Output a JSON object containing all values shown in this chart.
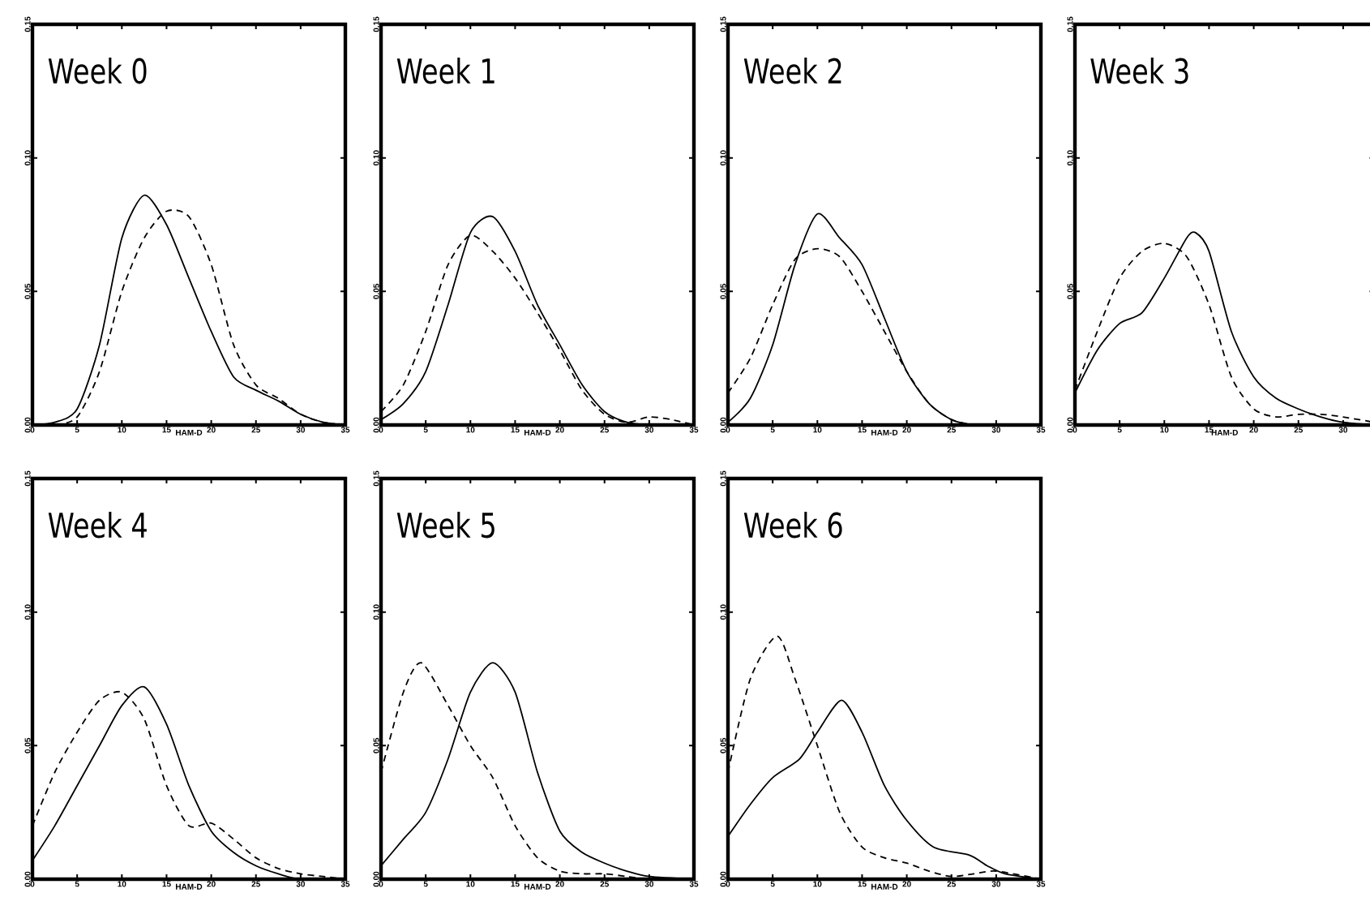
{
  "chart_data": [
    {
      "type": "line",
      "title": "Week 0",
      "xlabel": "HAM-D",
      "xlim": [
        0,
        35
      ],
      "xticks": [
        0,
        5,
        10,
        15,
        20,
        25,
        30,
        35
      ],
      "ylim": [
        0,
        0.15
      ],
      "yticks": [
        {
          "value": 0,
          "label": "0.00"
        },
        {
          "value": 0.05,
          "label": "0.05"
        },
        {
          "value": 0.1,
          "label": "0.10"
        },
        {
          "value": 0.15,
          "label": "0.15"
        }
      ],
      "marker": "none",
      "grid": false,
      "series": [
        {
          "color": "#000000",
          "line_style": "solid",
          "x": [
            0,
            2.5,
            5,
            7.5,
            10,
            12.5,
            15,
            17.5,
            20,
            22.5,
            25,
            27.5,
            30,
            32.5,
            35
          ],
          "values": [
            0,
            0.001,
            0.006,
            0.03,
            0.07,
            0.086,
            0.075,
            0.055,
            0.035,
            0.018,
            0.013,
            0.009,
            0.004,
            0.001,
            0
          ]
        },
        {
          "color": "#000000",
          "line_style": "dashed",
          "x": [
            0,
            2.5,
            5,
            7.5,
            10,
            12.5,
            15,
            17.5,
            20,
            22.5,
            25,
            27.5,
            30,
            32.5,
            35
          ],
          "values": [
            0,
            0,
            0.003,
            0.02,
            0.05,
            0.07,
            0.08,
            0.078,
            0.06,
            0.03,
            0.015,
            0.01,
            0.004,
            0.001,
            0
          ]
        }
      ]
    },
    {
      "type": "line",
      "title": "Week 1",
      "xlabel": "HAM-D",
      "xlim": [
        0,
        35
      ],
      "xticks": [
        0,
        5,
        10,
        15,
        20,
        25,
        30,
        35
      ],
      "ylim": [
        0,
        0.15
      ],
      "yticks": [
        {
          "value": 0,
          "label": "0.00"
        },
        {
          "value": 0.05,
          "label": "0.05"
        },
        {
          "value": 0.1,
          "label": "0.10"
        },
        {
          "value": 0.15,
          "label": "0.15"
        }
      ],
      "marker": "none",
      "grid": false,
      "series": [
        {
          "color": "#000000",
          "line_style": "solid",
          "x": [
            0,
            2.5,
            5,
            7.5,
            10,
            12.5,
            15,
            17.5,
            20,
            22.5,
            25,
            27.5,
            30,
            32.5,
            35
          ],
          "values": [
            0.002,
            0.008,
            0.02,
            0.045,
            0.072,
            0.078,
            0.065,
            0.045,
            0.03,
            0.015,
            0.005,
            0.001,
            0,
            0,
            0
          ]
        },
        {
          "color": "#000000",
          "line_style": "dashed",
          "x": [
            0,
            2.5,
            5,
            7.5,
            10,
            12.5,
            15,
            17.5,
            20,
            22.5,
            25,
            27.5,
            30,
            32.5,
            35
          ],
          "values": [
            0.005,
            0.015,
            0.035,
            0.06,
            0.071,
            0.065,
            0.055,
            0.042,
            0.028,
            0.013,
            0.004,
            0.001,
            0.003,
            0.002,
            0
          ]
        }
      ]
    },
    {
      "type": "line",
      "title": "Week 2",
      "xlabel": "HAM-D",
      "xlim": [
        0,
        35
      ],
      "xticks": [
        0,
        5,
        10,
        15,
        20,
        25,
        30,
        35
      ],
      "ylim": [
        0,
        0.15
      ],
      "yticks": [
        {
          "value": 0,
          "label": "0.00"
        },
        {
          "value": 0.05,
          "label": "0.05"
        },
        {
          "value": 0.1,
          "label": "0.10"
        },
        {
          "value": 0.15,
          "label": "0.15"
        }
      ],
      "marker": "none",
      "grid": false,
      "series": [
        {
          "color": "#000000",
          "line_style": "solid",
          "x": [
            0,
            2.5,
            5,
            7.5,
            10,
            12.5,
            15,
            17.5,
            20,
            22.5,
            25,
            27.5,
            30,
            35
          ],
          "values": [
            0.001,
            0.01,
            0.03,
            0.06,
            0.079,
            0.07,
            0.06,
            0.04,
            0.02,
            0.008,
            0.002,
            0,
            0,
            0
          ]
        },
        {
          "color": "#000000",
          "line_style": "dashed",
          "x": [
            0,
            2.5,
            5,
            7.5,
            10,
            12.5,
            15,
            17.5,
            20,
            22.5,
            25,
            27.5,
            30,
            35
          ],
          "values": [
            0.012,
            0.025,
            0.045,
            0.062,
            0.066,
            0.063,
            0.05,
            0.035,
            0.02,
            0.008,
            0.002,
            0,
            0,
            0
          ]
        }
      ]
    },
    {
      "type": "line",
      "title": "Week 3",
      "xlabel": "HAM-D",
      "xlim": [
        0,
        33.5
      ],
      "xticks": [
        0,
        5,
        10,
        15,
        20,
        25,
        30
      ],
      "ylim": [
        0,
        0.15
      ],
      "yticks": [
        {
          "value": 0,
          "label": "0.00"
        },
        {
          "value": 0.05,
          "label": "0.05"
        },
        {
          "value": 0.1,
          "label": "0.10"
        },
        {
          "value": 0.15,
          "label": "0.15"
        }
      ],
      "marker": "none",
      "grid": false,
      "series": [
        {
          "color": "#000000",
          "line_style": "solid",
          "x": [
            0,
            2.5,
            5,
            7.5,
            10,
            12.5,
            13.5,
            15,
            17.5,
            20,
            22.5,
            25,
            27.5,
            30,
            33.5
          ],
          "values": [
            0.012,
            0.028,
            0.038,
            0.042,
            0.055,
            0.07,
            0.072,
            0.065,
            0.035,
            0.018,
            0.01,
            0.006,
            0.003,
            0.001,
            0
          ]
        },
        {
          "color": "#000000",
          "line_style": "dashed",
          "x": [
            0,
            2.5,
            5,
            7.5,
            10,
            12.5,
            15,
            17.5,
            20,
            22.5,
            25,
            27.5,
            30,
            33.5
          ],
          "values": [
            0.013,
            0.035,
            0.055,
            0.065,
            0.068,
            0.063,
            0.045,
            0.018,
            0.006,
            0.003,
            0.004,
            0.004,
            0.003,
            0.001
          ]
        }
      ]
    },
    {
      "type": "line",
      "title": "Week 4",
      "xlabel": "HAM-D",
      "xlim": [
        0,
        35
      ],
      "xticks": [
        0,
        5,
        10,
        15,
        20,
        25,
        30,
        35
      ],
      "ylim": [
        0,
        0.15
      ],
      "yticks": [
        {
          "value": 0,
          "label": "0.00"
        },
        {
          "value": 0.05,
          "label": "0.05"
        },
        {
          "value": 0.1,
          "label": "0.10"
        },
        {
          "value": 0.15,
          "label": "0.15"
        }
      ],
      "marker": "none",
      "grid": false,
      "series": [
        {
          "color": "#000000",
          "line_style": "solid",
          "x": [
            0,
            2.5,
            5,
            7.5,
            10,
            12.5,
            15,
            17.5,
            20,
            22.5,
            25,
            27.5,
            30,
            35
          ],
          "values": [
            0.007,
            0.02,
            0.035,
            0.05,
            0.065,
            0.072,
            0.058,
            0.035,
            0.018,
            0.01,
            0.005,
            0.002,
            0,
            0
          ]
        },
        {
          "color": "#000000",
          "line_style": "dashed",
          "x": [
            0,
            2.5,
            5,
            7.5,
            10,
            12.5,
            15,
            17.5,
            20,
            22.5,
            25,
            27.5,
            30,
            32.5,
            35
          ],
          "values": [
            0.02,
            0.04,
            0.055,
            0.067,
            0.07,
            0.06,
            0.035,
            0.02,
            0.021,
            0.015,
            0.008,
            0.004,
            0.002,
            0.001,
            0
          ]
        }
      ]
    },
    {
      "type": "line",
      "title": "Week 5",
      "xlabel": "HAM-D",
      "xlim": [
        0,
        35
      ],
      "xticks": [
        0,
        5,
        10,
        15,
        20,
        25,
        30,
        35
      ],
      "ylim": [
        0,
        0.15
      ],
      "yticks": [
        {
          "value": 0,
          "label": "0.00"
        },
        {
          "value": 0.05,
          "label": "0.05"
        },
        {
          "value": 0.1,
          "label": "0.10"
        },
        {
          "value": 0.15,
          "label": "0.15"
        }
      ],
      "marker": "none",
      "grid": false,
      "series": [
        {
          "color": "#000000",
          "line_style": "solid",
          "x": [
            0,
            2.5,
            5,
            7.5,
            10,
            12.5,
            15,
            17.5,
            20,
            22.5,
            25,
            27.5,
            30,
            35
          ],
          "values": [
            0.005,
            0.015,
            0.025,
            0.045,
            0.07,
            0.081,
            0.07,
            0.04,
            0.018,
            0.01,
            0.006,
            0.003,
            0.001,
            0
          ]
        },
        {
          "color": "#000000",
          "line_style": "dashed",
          "x": [
            0,
            2.5,
            4.5,
            7.5,
            10,
            12.5,
            15,
            17.5,
            20,
            22.5,
            25,
            27.5,
            30,
            35
          ],
          "values": [
            0.04,
            0.07,
            0.081,
            0.065,
            0.05,
            0.038,
            0.02,
            0.008,
            0.003,
            0.002,
            0.002,
            0.001,
            0,
            0
          ]
        }
      ]
    },
    {
      "type": "line",
      "title": "Week 6",
      "xlabel": "HAM-D",
      "xlim": [
        0,
        35
      ],
      "xticks": [
        0,
        5,
        10,
        15,
        20,
        25,
        30,
        35
      ],
      "ylim": [
        0,
        0.15
      ],
      "yticks": [
        {
          "value": 0,
          "label": "0.00"
        },
        {
          "value": 0.05,
          "label": "0.05"
        },
        {
          "value": 0.1,
          "label": "0.10"
        },
        {
          "value": 0.15,
          "label": "0.15"
        }
      ],
      "marker": "none",
      "grid": false,
      "series": [
        {
          "color": "#000000",
          "line_style": "solid",
          "x": [
            0,
            2.5,
            5,
            8,
            10,
            12.7,
            15,
            17.5,
            20,
            23,
            27,
            29,
            31,
            35
          ],
          "values": [
            0.016,
            0.028,
            0.038,
            0.045,
            0.055,
            0.067,
            0.055,
            0.035,
            0.022,
            0.012,
            0.009,
            0.005,
            0.002,
            0
          ]
        },
        {
          "color": "#000000",
          "line_style": "dashed",
          "x": [
            0,
            2.5,
            5.5,
            7.5,
            10,
            12.5,
            15,
            17.5,
            20,
            22.5,
            25,
            27.5,
            30,
            35
          ],
          "values": [
            0.04,
            0.075,
            0.091,
            0.075,
            0.05,
            0.025,
            0.012,
            0.008,
            0.006,
            0.003,
            0.001,
            0.002,
            0.003,
            0
          ]
        }
      ]
    }
  ]
}
